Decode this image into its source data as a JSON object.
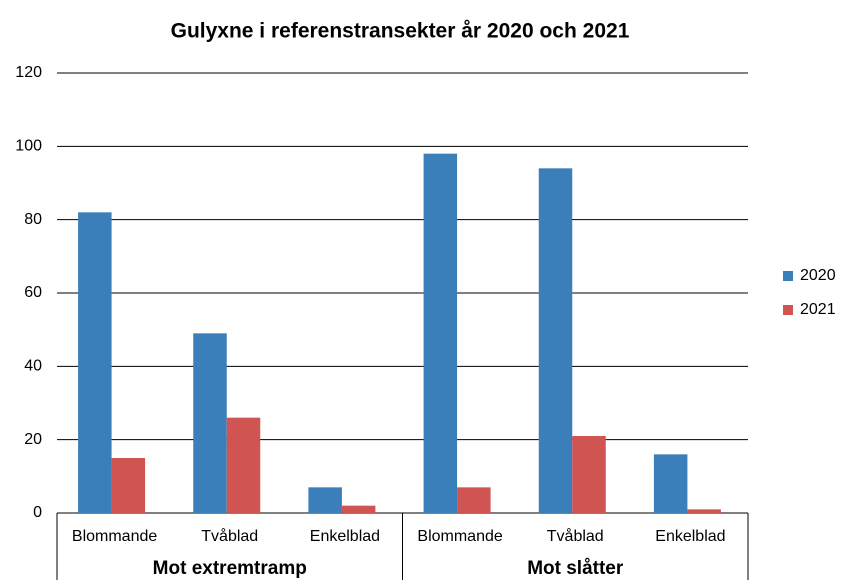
{
  "chart_data": {
    "type": "bar",
    "title": "Gulyxne i referenstransekter år 2020 och 2021",
    "groups": [
      {
        "name": "Mot extremtramp",
        "categories": [
          "Blommande",
          "Tvåblad",
          "Enkelblad"
        ]
      },
      {
        "name": "Mot slåtter",
        "categories": [
          "Blommande",
          "Tvåblad",
          "Enkelblad"
        ]
      }
    ],
    "series": [
      {
        "name": "2020",
        "color": "#3a7fba",
        "values": [
          [
            82,
            49,
            7
          ],
          [
            98,
            94,
            16
          ]
        ]
      },
      {
        "name": "2021",
        "color": "#d05552",
        "values": [
          [
            15,
            26,
            2
          ],
          [
            7,
            21,
            1
          ]
        ]
      }
    ],
    "ylim": [
      0,
      120
    ],
    "yticks": [
      0,
      20,
      40,
      60,
      80,
      100,
      120
    ],
    "grid": true,
    "legend": "right"
  }
}
